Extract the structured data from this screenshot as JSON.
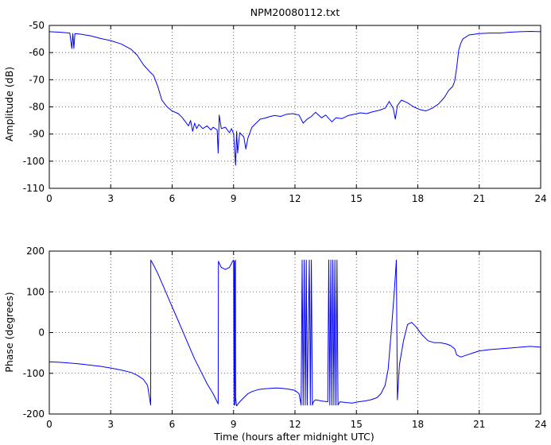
{
  "chart_data": [
    {
      "type": "line",
      "title": "NPM20080112.txt",
      "xlabel": "",
      "ylabel": "Amplitude (dB)",
      "xlim": [
        0,
        24
      ],
      "ylim": [
        -110,
        -50
      ],
      "xticks": [
        0,
        3,
        6,
        9,
        12,
        15,
        18,
        21,
        24
      ],
      "yticks": [
        -110,
        -100,
        -90,
        -80,
        -70,
        -60,
        -50
      ],
      "grid": true,
      "series": [
        {
          "color": "#0000ff",
          "x": [
            0,
            0.5,
            1.0,
            1.1,
            1.15,
            1.2,
            1.25,
            1.5,
            2.0,
            2.5,
            3.0,
            3.5,
            4.0,
            4.3,
            4.6,
            4.9,
            5.1,
            5.3,
            5.5,
            5.7,
            5.8,
            6.0,
            6.3,
            6.5,
            6.8,
            6.9,
            7.0,
            7.1,
            7.2,
            7.3,
            7.5,
            7.7,
            7.9,
            8.0,
            8.2,
            8.25,
            8.3,
            8.4,
            8.6,
            8.8,
            8.9,
            9.0,
            9.1,
            9.15,
            9.2,
            9.3,
            9.5,
            9.6,
            9.7,
            9.9,
            10.1,
            10.3,
            10.5,
            10.8,
            11.0,
            11.3,
            11.6,
            11.9,
            12.2,
            12.4,
            12.6,
            12.8,
            13.0,
            13.3,
            13.5,
            13.8,
            14.0,
            14.3,
            14.6,
            14.9,
            15.2,
            15.5,
            15.8,
            16.1,
            16.4,
            16.6,
            16.8,
            16.9,
            17.0,
            17.2,
            17.5,
            17.8,
            18.1,
            18.4,
            18.7,
            19.0,
            19.3,
            19.5,
            19.7,
            19.8,
            19.9,
            20.0,
            20.1,
            20.2,
            20.5,
            21.0,
            21.5,
            22.0,
            22.5,
            23.0,
            23.5,
            24.0
          ],
          "y": [
            -52.3,
            -52.5,
            -52.8,
            -58.5,
            -53.0,
            -58.5,
            -53.0,
            -53.2,
            -53.8,
            -54.8,
            -55.6,
            -56.8,
            -58.8,
            -61.0,
            -64.5,
            -67.0,
            -68.5,
            -72.5,
            -77.5,
            -79.5,
            -80.3,
            -81.5,
            -82.5,
            -84.0,
            -87.0,
            -85.0,
            -89.0,
            -86.0,
            -88.0,
            -86.5,
            -88.0,
            -87.0,
            -88.5,
            -87.5,
            -88.5,
            -97.0,
            -83.0,
            -88.0,
            -87.5,
            -89.5,
            -88.0,
            -90.0,
            -101.5,
            -89.0,
            -97.0,
            -89.5,
            -91.0,
            -95.5,
            -91.5,
            -87.5,
            -86.0,
            -84.5,
            -84.2,
            -83.5,
            -83.2,
            -83.5,
            -82.7,
            -82.5,
            -83.0,
            -86.0,
            -84.5,
            -83.5,
            -82.0,
            -84.0,
            -83.0,
            -85.5,
            -84.0,
            -84.3,
            -83.2,
            -82.7,
            -82.2,
            -82.5,
            -81.8,
            -81.3,
            -80.5,
            -78.0,
            -80.5,
            -84.5,
            -79.5,
            -77.5,
            -78.5,
            -80.0,
            -81.0,
            -81.5,
            -80.5,
            -79.0,
            -76.5,
            -74.0,
            -72.5,
            -70.5,
            -65.5,
            -59.0,
            -56.5,
            -55.0,
            -53.5,
            -53.0,
            -52.8,
            -52.8,
            -52.5,
            -52.3,
            -52.2,
            -52.3
          ]
        }
      ]
    },
    {
      "type": "line",
      "title": "",
      "xlabel": "Time (hours after midnight UTC)",
      "ylabel": "Phase (degrees)",
      "xlim": [
        0,
        24
      ],
      "ylim": [
        -200,
        200
      ],
      "xticks": [
        0,
        3,
        6,
        9,
        12,
        15,
        18,
        21,
        24
      ],
      "yticks": [
        -200,
        -100,
        0,
        100,
        200
      ],
      "grid": true,
      "series": [
        {
          "color": "#0000ff",
          "x": [
            0,
            0.5,
            1.0,
            1.5,
            2.0,
            2.5,
            3.0,
            3.5,
            4.0,
            4.3,
            4.6,
            4.8,
            4.95,
            4.96,
            5.1,
            5.3,
            5.6,
            5.9,
            6.2,
            6.5,
            6.8,
            7.1,
            7.4,
            7.7,
            8.0,
            8.2,
            8.25,
            8.26,
            8.4,
            8.6,
            8.8,
            8.95,
            9.0,
            9.02,
            9.05,
            9.07,
            9.09,
            9.1,
            9.15,
            9.3,
            9.5,
            9.7,
            9.9,
            10.2,
            10.5,
            10.8,
            11.1,
            11.4,
            11.7,
            12.0,
            12.2,
            12.3,
            12.35,
            12.4,
            12.45,
            12.5,
            12.55,
            12.6,
            12.7,
            12.75,
            12.8,
            12.85,
            12.9,
            13.0,
            13.3,
            13.6,
            13.65,
            13.7,
            13.75,
            13.8,
            13.85,
            13.9,
            13.95,
            14.0,
            14.05,
            14.1,
            14.2,
            14.5,
            14.8,
            15.1,
            15.4,
            15.7,
            16.0,
            16.2,
            16.4,
            16.55,
            16.7,
            16.85,
            16.95,
            17.0,
            17.1,
            17.3,
            17.5,
            17.7,
            17.9,
            18.2,
            18.5,
            18.8,
            19.1,
            19.4,
            19.6,
            19.8,
            19.9,
            20.1,
            20.4,
            20.7,
            21.0,
            21.5,
            22.0,
            22.5,
            23.0,
            23.5,
            24.0
          ],
          "y": [
            -72,
            -73,
            -75,
            -77,
            -80,
            -83,
            -87,
            -92,
            -98,
            -105,
            -115,
            -130,
            -178,
            178,
            165,
            145,
            110,
            75,
            40,
            5,
            -30,
            -65,
            -95,
            -125,
            -150,
            -170,
            -175,
            175,
            160,
            155,
            160,
            175,
            178,
            -178,
            175,
            -178,
            178,
            -160,
            -180,
            -170,
            -160,
            -150,
            -145,
            -140,
            -138,
            -137,
            -136,
            -137,
            -139,
            -142,
            -150,
            -178,
            178,
            -178,
            178,
            -178,
            178,
            -178,
            178,
            -178,
            178,
            -178,
            -170,
            -165,
            -168,
            -170,
            178,
            -178,
            178,
            -178,
            178,
            -178,
            178,
            -178,
            178,
            -178,
            -170,
            -172,
            -173,
            -170,
            -168,
            -165,
            -160,
            -150,
            -130,
            -90,
            0,
            100,
            178,
            -165,
            -80,
            -20,
            20,
            25,
            15,
            -5,
            -20,
            -25,
            -25,
            -28,
            -32,
            -40,
            -55,
            -60,
            -55,
            -50,
            -45,
            -42,
            -40,
            -38,
            -36,
            -34,
            -36
          ]
        }
      ]
    }
  ]
}
